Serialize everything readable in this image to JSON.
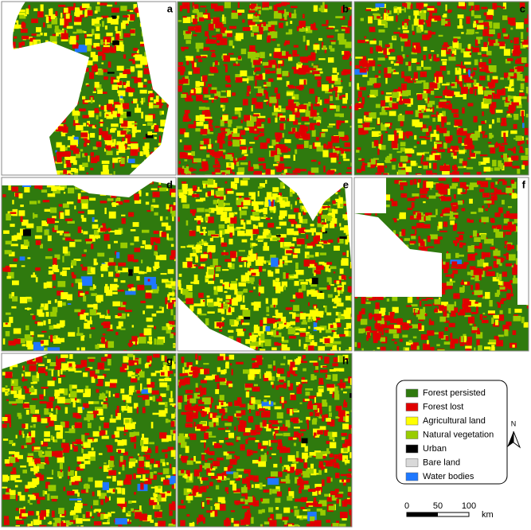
{
  "panels": [
    {
      "label": "a"
    },
    {
      "label": "b"
    },
    {
      "label": "c"
    },
    {
      "label": "d"
    },
    {
      "label": "e"
    },
    {
      "label": "f"
    },
    {
      "label": "g"
    },
    {
      "label": "h"
    }
  ],
  "legend": {
    "items": [
      {
        "label": "Forest persisted",
        "color": "#2f7a0e"
      },
      {
        "label": "Forest lost",
        "color": "#e00000"
      },
      {
        "label": "Agricultural land",
        "color": "#ffff00"
      },
      {
        "label": "Natural vegetation",
        "color": "#99cc00"
      },
      {
        "label": "Urban",
        "color": "#000000"
      },
      {
        "label": "Bare land",
        "color": "#d9d9d9"
      },
      {
        "label": "Water bodies",
        "color": "#1f78ff"
      }
    ]
  },
  "scale_bar": {
    "ticks": [
      0,
      50,
      100
    ],
    "unit": "km"
  },
  "north_arrow": {
    "label": "N"
  }
}
